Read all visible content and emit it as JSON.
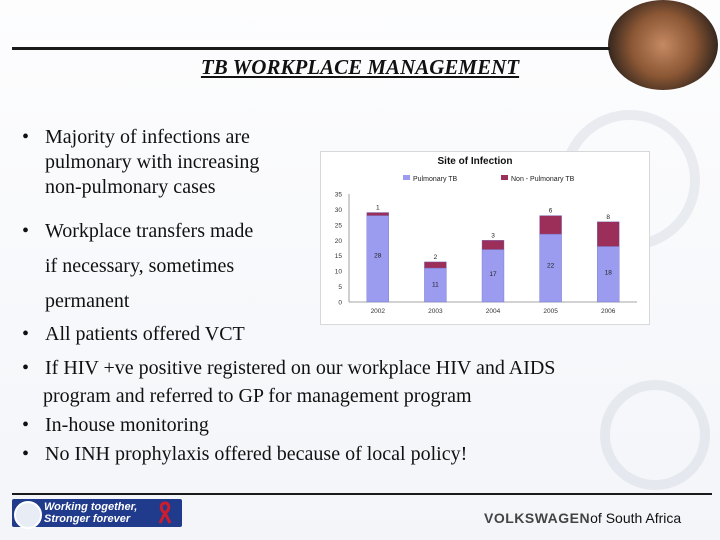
{
  "slide": {
    "title": "TB WORKPLACE MANAGEMENT",
    "bullets": [
      [
        "Majority of infections are",
        "pulmonary with increasing",
        "non-pulmonary cases"
      ],
      [
        "Workplace transfers made",
        "if necessary, sometimes",
        "permanent"
      ],
      [
        "All patients offered VCT"
      ],
      [
        "If HIV +ve positive registered on our workplace HIV and AIDS",
        "program and referred to GP for management program"
      ],
      [
        "In-house monitoring"
      ],
      [
        "No INH prophylaxis offered because of local policy!"
      ]
    ],
    "footer_left_line1": "Working together,",
    "footer_left_line2": "Stronger forever",
    "brand_name": "VOLKSWAGEN",
    "brand_suffix": "of South Africa"
  },
  "chart_data": {
    "type": "bar",
    "stacked": true,
    "title": "Site of Infection",
    "categories": [
      "2002",
      "2003",
      "2004",
      "2005",
      "2006"
    ],
    "series": [
      {
        "name": "Pulmonary TB",
        "values": [
          28,
          11,
          17,
          22,
          18
        ],
        "color": "#9b9bef"
      },
      {
        "name": "Non - Pulmonary TB",
        "values": [
          1,
          2,
          3,
          6,
          8
        ],
        "color": "#9b2f5a"
      }
    ],
    "ylim": [
      0,
      35
    ],
    "yticks": [
      0,
      5,
      10,
      15,
      20,
      25,
      30,
      35
    ],
    "grid": false,
    "legend": "top"
  }
}
